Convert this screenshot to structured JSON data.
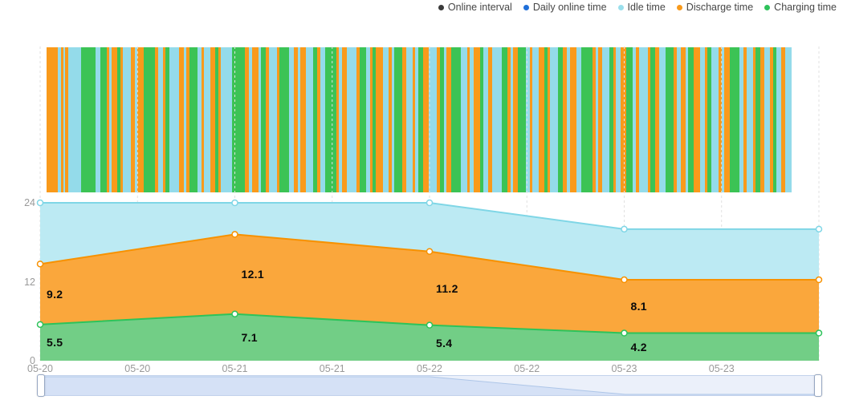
{
  "legend": {
    "items": [
      {
        "label": "Online interval",
        "color": "#3a3a3a"
      },
      {
        "label": "Daily online time",
        "color": "#1f6fd9"
      },
      {
        "label": "Idle time",
        "color": "#9adfec"
      },
      {
        "label": "Discharge time",
        "color": "#f89a1c"
      },
      {
        "label": "Charging time",
        "color": "#2fc25b"
      }
    ]
  },
  "chart_data": [
    {
      "type": "heatmap",
      "name": "Online interval strip",
      "description": "Dense vertical stripe band showing alternating online interval states",
      "colors": {
        "o": "#f99a1b",
        "g": "#3cc355",
        "b": "#94dbea"
      },
      "segments": [
        "o14",
        "b4",
        "o3",
        "b2",
        "o4",
        "b16",
        "g18",
        "b6",
        "g8",
        "o3",
        "b3",
        "o7",
        "g4",
        "o3",
        "b10",
        "o5",
        "b3",
        "o8",
        "g14",
        "o4",
        "b6",
        "o3",
        "g5",
        "b12",
        "o6",
        "b3",
        "o4",
        "g10",
        "b5",
        "o3",
        "b8",
        "o6",
        "g4",
        "o3",
        "b14",
        "g16",
        "o5",
        "b4",
        "o8",
        "b3",
        "g6",
        "o4",
        "b10",
        "o3",
        "g12",
        "b6",
        "o5",
        "b3",
        "o7",
        "b9",
        "g5",
        "o4",
        "b6",
        "g14",
        "o3",
        "b4",
        "o6",
        "b12",
        "o4",
        "g8",
        "b5",
        "o3",
        "g4",
        "o9",
        "b7",
        "o4",
        "b3",
        "g10",
        "o5",
        "b8",
        "o3",
        "b4",
        "g6",
        "o7",
        "b10",
        "o4",
        "g5",
        "b3",
        "o6",
        "g12",
        "b8",
        "o3",
        "b5",
        "o8",
        "g4",
        "b6",
        "o5",
        "b12",
        "g7",
        "o4",
        "b3",
        "o6",
        "g10",
        "b5",
        "o3",
        "b8",
        "o7",
        "g4",
        "o3",
        "b10",
        "g6",
        "o5",
        "b4",
        "o8",
        "b6",
        "g14",
        "o4",
        "b3",
        "o5",
        "b9",
        "g5",
        "o3",
        "b6",
        "o7",
        "g8",
        "b4",
        "o4",
        "b11",
        "o3",
        "g6",
        "o5",
        "b8",
        "g10",
        "o4",
        "b5",
        "o6",
        "b3",
        "g7",
        "o8",
        "b6",
        "o3",
        "g5",
        "b9",
        "o4",
        "b3",
        "o7",
        "g12",
        "b5",
        "o4",
        "b8",
        "o3",
        "g6",
        "o5",
        "b7",
        "o4",
        "g4",
        "b6",
        "o5",
        "b8"
      ]
    },
    {
      "type": "area",
      "stacked": true,
      "tick_labels": [
        "05-20",
        "05-20",
        "05-21",
        "05-21",
        "05-22",
        "05-22",
        "05-23",
        "05-23",
        ""
      ],
      "x_positions": [
        0,
        2,
        4,
        6,
        8
      ],
      "ylim": [
        0,
        24
      ],
      "yticks": [
        0,
        12,
        24
      ],
      "grid": "vertical-dashed",
      "series": [
        {
          "name": "Charging time",
          "values": [
            5.5,
            7.1,
            5.4,
            4.2,
            4.2
          ],
          "labels": [
            "5.5",
            "7.1",
            "5.4",
            "4.2"
          ],
          "line_color": "#2dc35a",
          "area_color": "#72ce86"
        },
        {
          "name": "Discharge time",
          "values": [
            9.2,
            12.1,
            11.2,
            8.1,
            8.1
          ],
          "labels": [
            "9.2",
            "12.1",
            "11.2",
            "8.1"
          ],
          "line_color": "#f79100",
          "area_color": "#faa73c"
        },
        {
          "name": "Idle time",
          "values": [
            9.3,
            4.8,
            7.4,
            7.7,
            7.7
          ],
          "labels": [],
          "line_color": "#7fd6e6",
          "area_color": "#bceaf3"
        }
      ]
    }
  ],
  "datazoom": {
    "shadow_values": [
      24,
      24,
      24,
      20,
      20
    ],
    "track_color": "#ebf0fa",
    "shadow_fill": "#d5e1f6",
    "shadow_line": "#aec6e8",
    "border_color": "#c3d2ec"
  },
  "colors": {
    "gridline": "#e1e1e1",
    "axis_text": "#999999",
    "value_text": "#0a0a0a"
  }
}
